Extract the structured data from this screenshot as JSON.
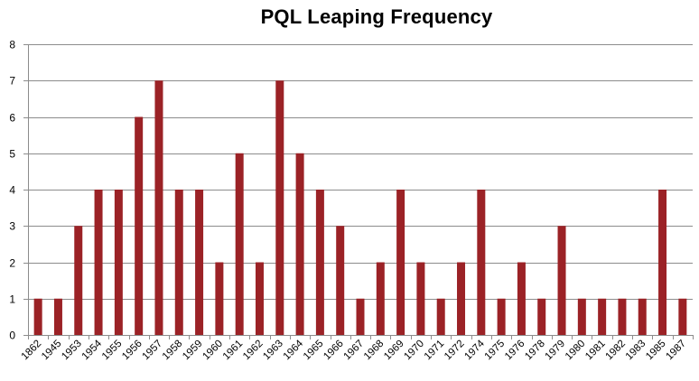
{
  "chart_data": {
    "type": "bar",
    "title": "PQL Leaping Frequency",
    "xlabel": "",
    "ylabel": "",
    "ylim": [
      0,
      8
    ],
    "yticks": [
      0,
      1,
      2,
      3,
      4,
      5,
      6,
      7,
      8
    ],
    "grid": true,
    "legend": "none",
    "categories": [
      "1862",
      "1945",
      "1953",
      "1954",
      "1955",
      "1956",
      "1957",
      "1958",
      "1959",
      "1960",
      "1961",
      "1962",
      "1963",
      "1964",
      "1965",
      "1966",
      "1967",
      "1968",
      "1969",
      "1970",
      "1971",
      "1972",
      "1974",
      "1975",
      "1976",
      "1978",
      "1979",
      "1980",
      "1981",
      "1982",
      "1983",
      "1985",
      "1987"
    ],
    "values": [
      1,
      1,
      3,
      4,
      4,
      6,
      7,
      4,
      4,
      2,
      5,
      2,
      7,
      5,
      4,
      3,
      1,
      2,
      4,
      2,
      1,
      2,
      4,
      1,
      2,
      1,
      3,
      1,
      1,
      1,
      1,
      4,
      1
    ],
    "colors": {
      "bar": "#9b2226",
      "grid": "#8c8c8c",
      "axis": "#8c8c8c"
    }
  }
}
